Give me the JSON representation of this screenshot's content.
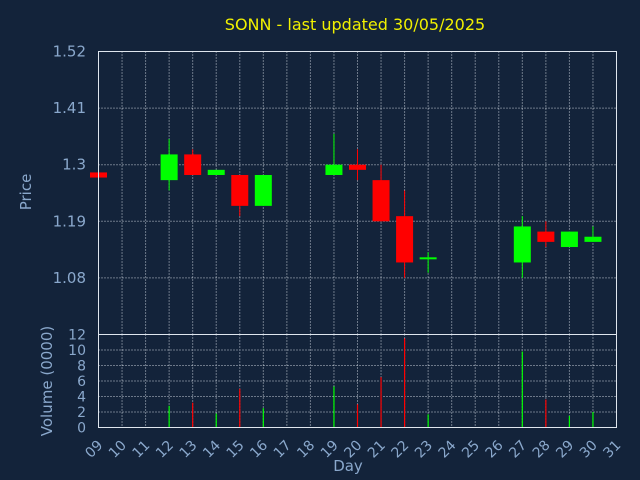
{
  "title": "SONN - last updated 30/05/2025",
  "colors": {
    "background": "#13233a",
    "up": "#00ff00",
    "down": "#ff0000",
    "title": "#f0f000",
    "text": "#8aa8cc"
  },
  "chart_data": [
    {
      "type": "candlestick",
      "ylabel": "Price",
      "ylim": [
        0.97,
        1.52
      ],
      "yticks": [
        "1.52",
        "1.41",
        "1.3",
        "1.19",
        "1.08"
      ],
      "ytick_values": [
        1.52,
        1.41,
        1.3,
        1.19,
        1.08
      ],
      "grid": true,
      "xticks": [
        "09",
        "10",
        "11",
        "12",
        "13",
        "14",
        "15",
        "16",
        "17",
        "18",
        "19",
        "20",
        "21",
        "22",
        "23",
        "24",
        "25",
        "26",
        "27",
        "28",
        "29",
        "30",
        "31"
      ],
      "candles": [
        {
          "day": 9,
          "open": 1.285,
          "close": 1.275,
          "high": 1.285,
          "low": 1.275
        },
        {
          "day": 12,
          "open": 1.27,
          "close": 1.32,
          "high": 1.35,
          "low": 1.25
        },
        {
          "day": 13,
          "open": 1.32,
          "close": 1.28,
          "high": 1.33,
          "low": 1.28
        },
        {
          "day": 14,
          "open": 1.28,
          "close": 1.29,
          "high": 1.29,
          "low": 1.28
        },
        {
          "day": 15,
          "open": 1.28,
          "close": 1.22,
          "high": 1.28,
          "low": 1.2
        },
        {
          "day": 16,
          "open": 1.22,
          "close": 1.28,
          "high": 1.28,
          "low": 1.22
        },
        {
          "day": 19,
          "open": 1.28,
          "close": 1.3,
          "high": 1.36,
          "low": 1.28
        },
        {
          "day": 20,
          "open": 1.3,
          "close": 1.29,
          "high": 1.33,
          "low": 1.27
        },
        {
          "day": 21,
          "open": 1.27,
          "close": 1.19,
          "high": 1.3,
          "low": 1.19
        },
        {
          "day": 22,
          "open": 1.2,
          "close": 1.11,
          "high": 1.25,
          "low": 1.08
        },
        {
          "day": 23,
          "open": 1.12,
          "close": 1.12,
          "high": 1.13,
          "low": 1.09
        },
        {
          "day": 27,
          "open": 1.11,
          "close": 1.18,
          "high": 1.2,
          "low": 1.08
        },
        {
          "day": 28,
          "open": 1.17,
          "close": 1.15,
          "high": 1.19,
          "low": 1.14
        },
        {
          "day": 29,
          "open": 1.14,
          "close": 1.17,
          "high": 1.17,
          "low": 1.14
        },
        {
          "day": 30,
          "open": 1.15,
          "close": 1.16,
          "high": 1.18,
          "low": 1.15
        }
      ]
    },
    {
      "type": "bar",
      "ylabel": "Volume (0000)",
      "xlabel": "Day",
      "ylim": [
        0,
        12
      ],
      "yticks": [
        "12",
        "10",
        "8",
        "6",
        "4",
        "2",
        "0"
      ],
      "ytick_values": [
        12,
        10,
        8,
        6,
        4,
        2,
        0
      ],
      "grid": true,
      "volumes": [
        {
          "day": 12,
          "value": 2.8,
          "direction": "up"
        },
        {
          "day": 13,
          "value": 3.2,
          "direction": "down"
        },
        {
          "day": 14,
          "value": 1.8,
          "direction": "up"
        },
        {
          "day": 15,
          "value": 5.0,
          "direction": "down"
        },
        {
          "day": 16,
          "value": 2.5,
          "direction": "up"
        },
        {
          "day": 19,
          "value": 5.3,
          "direction": "up"
        },
        {
          "day": 20,
          "value": 3.0,
          "direction": "down"
        },
        {
          "day": 21,
          "value": 6.5,
          "direction": "down"
        },
        {
          "day": 22,
          "value": 11.5,
          "direction": "down"
        },
        {
          "day": 23,
          "value": 1.7,
          "direction": "up"
        },
        {
          "day": 27,
          "value": 9.8,
          "direction": "up"
        },
        {
          "day": 28,
          "value": 3.6,
          "direction": "down"
        },
        {
          "day": 29,
          "value": 1.5,
          "direction": "up"
        },
        {
          "day": 30,
          "value": 2.0,
          "direction": "up"
        }
      ]
    }
  ]
}
